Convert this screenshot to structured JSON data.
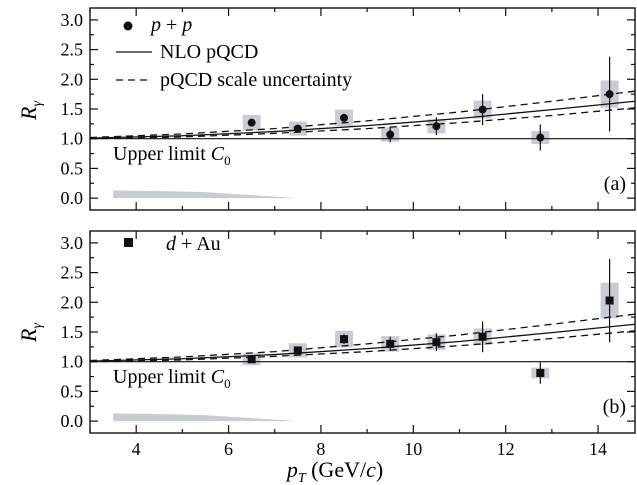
{
  "chart_data": [
    {
      "type": "scatter",
      "panel_label": "(a)",
      "ylabel": "R",
      "ylabel_sub": "γ",
      "xlim": [
        3,
        14.8
      ],
      "ylim": [
        -0.2,
        3.2
      ],
      "yticks": [
        "3.0",
        "2.5",
        "2.0",
        "1.5",
        "1.0",
        "0.5",
        "0.0"
      ],
      "reference_line_y": 1.0,
      "legend": {
        "data_label_prefix": "",
        "data_label_italic": "p",
        "data_label_plus": " + ",
        "data_label_italic2": "p",
        "data_label_tail": "",
        "marker": "circle",
        "nlo_label": "NLO pQCD",
        "scale_label": "pQCD scale uncertainty"
      },
      "upper_limit_label": "Upper limit ",
      "upper_limit_symbol": "C",
      "upper_limit_sub": "0",
      "points": [
        {
          "x": 6.5,
          "y": 1.27,
          "err": 0.05,
          "sys": 0.13
        },
        {
          "x": 7.5,
          "y": 1.17,
          "err": 0.05,
          "sys": 0.12
        },
        {
          "x": 8.5,
          "y": 1.35,
          "err": 0.07,
          "sys": 0.14
        },
        {
          "x": 9.5,
          "y": 1.07,
          "err": 0.13,
          "sys": 0.12
        },
        {
          "x": 10.5,
          "y": 1.21,
          "err": 0.15,
          "sys": 0.12
        },
        {
          "x": 11.5,
          "y": 1.49,
          "err": 0.26,
          "sys": 0.15
        },
        {
          "x": 12.75,
          "y": 1.02,
          "err": 0.22,
          "sys": 0.11
        },
        {
          "x": 14.25,
          "y": 1.75,
          "err": 0.63,
          "sys": 0.23
        }
      ],
      "nlo": [
        [
          3,
          1.01
        ],
        [
          5,
          1.05
        ],
        [
          7,
          1.12
        ],
        [
          9,
          1.22
        ],
        [
          11,
          1.34
        ],
        [
          13,
          1.49
        ],
        [
          14.8,
          1.63
        ]
      ],
      "scale_upper": [
        [
          3,
          1.02
        ],
        [
          5,
          1.08
        ],
        [
          7,
          1.17
        ],
        [
          9,
          1.3
        ],
        [
          11,
          1.45
        ],
        [
          13,
          1.63
        ],
        [
          14.8,
          1.8
        ]
      ],
      "scale_lower": [
        [
          3,
          1.0
        ],
        [
          5,
          1.03
        ],
        [
          7,
          1.09
        ],
        [
          9,
          1.17
        ],
        [
          11,
          1.27
        ],
        [
          13,
          1.39
        ],
        [
          14.8,
          1.52
        ]
      ],
      "upper_limit_band": [
        [
          3.5,
          0.13
        ],
        [
          4.5,
          0.12
        ],
        [
          5.5,
          0.1
        ],
        [
          6.5,
          0.05
        ],
        [
          7.5,
          0.0
        ]
      ]
    },
    {
      "type": "scatter",
      "panel_label": "(b)",
      "ylabel": "R",
      "ylabel_sub": "γ",
      "xlim": [
        3,
        14.8
      ],
      "ylim": [
        -0.2,
        3.2
      ],
      "yticks": [
        "3.0",
        "2.5",
        "2.0",
        "1.5",
        "1.0",
        "0.5",
        "0.0"
      ],
      "xticks": [
        "4",
        "6",
        "8",
        "10",
        "12",
        "14"
      ],
      "reference_line_y": 1.0,
      "legend": {
        "data_label_italic": "d",
        "data_label_plus": " + ",
        "data_label_tail": "Au",
        "marker": "square"
      },
      "upper_limit_label": "Upper limit ",
      "upper_limit_symbol": "C",
      "upper_limit_sub": "0",
      "xlabel_symbol": "p",
      "xlabel_sub": "T",
      "xlabel_unit_prefix": " (GeV/",
      "xlabel_unit_italic": "c",
      "xlabel_unit_suffix": ")",
      "points": [
        {
          "x": 6.5,
          "y": 1.04,
          "err": 0.04,
          "sys": 0.1
        },
        {
          "x": 7.5,
          "y": 1.19,
          "err": 0.06,
          "sys": 0.12
        },
        {
          "x": 8.5,
          "y": 1.38,
          "err": 0.08,
          "sys": 0.14
        },
        {
          "x": 9.5,
          "y": 1.3,
          "err": 0.12,
          "sys": 0.13
        },
        {
          "x": 10.5,
          "y": 1.33,
          "err": 0.15,
          "sys": 0.13
        },
        {
          "x": 11.5,
          "y": 1.42,
          "err": 0.26,
          "sys": 0.14
        },
        {
          "x": 12.75,
          "y": 0.81,
          "err": 0.18,
          "sys": 0.09
        },
        {
          "x": 14.25,
          "y": 2.03,
          "err": 0.7,
          "sys": 0.3
        }
      ],
      "nlo": [
        [
          3,
          1.01
        ],
        [
          5,
          1.05
        ],
        [
          7,
          1.12
        ],
        [
          9,
          1.22
        ],
        [
          11,
          1.34
        ],
        [
          13,
          1.49
        ],
        [
          14.8,
          1.63
        ]
      ],
      "scale_upper": [
        [
          3,
          1.02
        ],
        [
          5,
          1.08
        ],
        [
          7,
          1.17
        ],
        [
          9,
          1.3
        ],
        [
          11,
          1.45
        ],
        [
          13,
          1.63
        ],
        [
          14.8,
          1.8
        ]
      ],
      "scale_lower": [
        [
          3,
          1.0
        ],
        [
          5,
          1.03
        ],
        [
          7,
          1.09
        ],
        [
          9,
          1.17
        ],
        [
          11,
          1.27
        ],
        [
          13,
          1.39
        ],
        [
          14.8,
          1.52
        ]
      ],
      "upper_limit_band": [
        [
          3.5,
          0.13
        ],
        [
          4.5,
          0.12
        ],
        [
          5.5,
          0.1
        ],
        [
          6.5,
          0.05
        ],
        [
          7.5,
          0.0
        ]
      ]
    }
  ]
}
